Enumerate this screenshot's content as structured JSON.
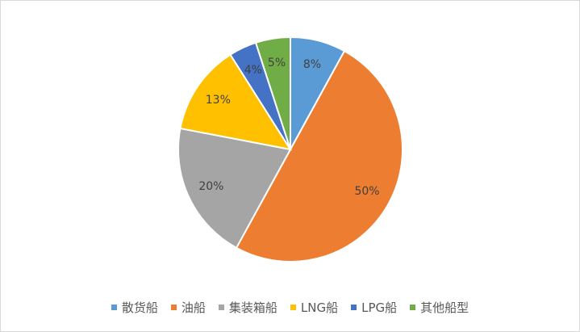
{
  "chart_data": {
    "type": "pie",
    "slices": [
      {
        "label": "散货船",
        "value": 8,
        "data_label": "8%",
        "color": "#5b9bd5"
      },
      {
        "label": "油船",
        "value": 50,
        "data_label": "50%",
        "color": "#ed7d31"
      },
      {
        "label": "集装箱船",
        "value": 20,
        "data_label": "20%",
        "color": "#a5a5a5"
      },
      {
        "label": "LNG船",
        "value": 13,
        "data_label": "13%",
        "color": "#ffc000"
      },
      {
        "label": "LPG船",
        "value": 4,
        "data_label": "4%",
        "color": "#4472c4"
      },
      {
        "label": "其他船型",
        "value": 5,
        "data_label": "5%",
        "color": "#70ad47"
      }
    ],
    "legend_position": "bottom",
    "start": "12 o'clock, clockwise"
  }
}
